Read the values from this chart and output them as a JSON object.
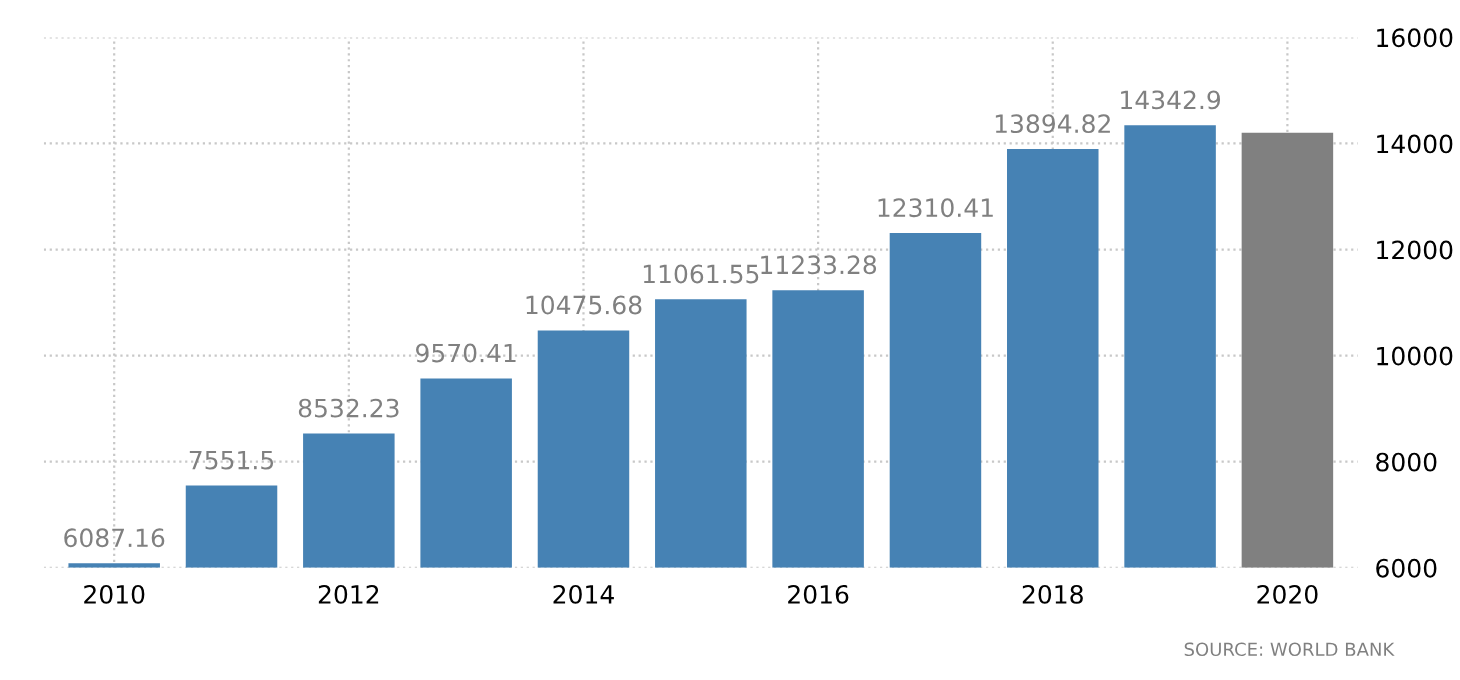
{
  "chart_data": {
    "type": "bar",
    "categories": [
      "2010",
      null,
      "2012",
      null,
      "2014",
      null,
      "2016",
      null,
      "2018",
      null,
      "2020"
    ],
    "values": [
      6087.16,
      7551.5,
      8532.23,
      9570.41,
      10475.68,
      11061.55,
      11233.28,
      12310.41,
      13894.82,
      14342.9,
      14200
    ],
    "value_labels": [
      "6087.16",
      "7551.5",
      "8532.23",
      "9570.41",
      "10475.68",
      "11061.55",
      "11233.28",
      "12310.41",
      "13894.82",
      "14342.9",
      null
    ],
    "colors": [
      "#4682b4",
      "#4682b4",
      "#4682b4",
      "#4682b4",
      "#4682b4",
      "#4682b4",
      "#4682b4",
      "#4682b4",
      "#4682b4",
      "#4682b4",
      "#808080"
    ],
    "ylim": [
      6000,
      16000
    ],
    "yticks": [
      6000,
      8000,
      10000,
      12000,
      14000,
      16000
    ],
    "grid": true,
    "annotations": [
      "SOURCE: WORLD BANK"
    ]
  }
}
